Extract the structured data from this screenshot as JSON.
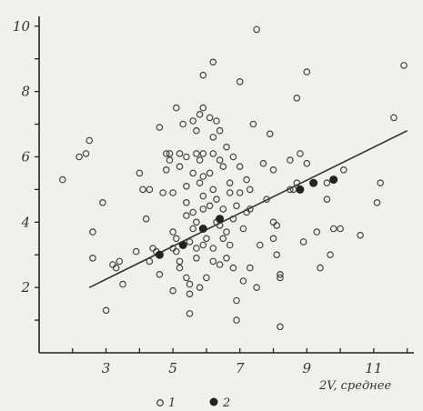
{
  "chart_data": {
    "type": "scatter",
    "title": "",
    "xlabel": "2V, среднее",
    "ylabel": "",
    "xlim": [
      1.0,
      12.2
    ],
    "ylim": [
      0,
      10.3
    ],
    "x_ticks": [
      "3",
      "5",
      "7",
      "9",
      "11"
    ],
    "y_ticks": [
      "2",
      "4",
      "6",
      "8",
      "10"
    ],
    "grid": false,
    "legend_position": "bottom-center",
    "colors": {
      "open_marker": "#444444",
      "filled_marker": "#222222",
      "line": "#333333",
      "axis": "#222222"
    },
    "series": [
      {
        "name": "1",
        "marker": "open-circle",
        "points": [
          [
            1.7,
            5.3
          ],
          [
            2.2,
            6.0
          ],
          [
            2.4,
            6.1
          ],
          [
            2.5,
            6.5
          ],
          [
            2.6,
            3.7
          ],
          [
            2.6,
            2.9
          ],
          [
            2.9,
            4.6
          ],
          [
            3.0,
            1.3
          ],
          [
            3.2,
            2.7
          ],
          [
            3.3,
            2.6
          ],
          [
            3.4,
            2.8
          ],
          [
            3.5,
            2.1
          ],
          [
            3.9,
            3.1
          ],
          [
            4.0,
            5.5
          ],
          [
            4.1,
            5.0
          ],
          [
            4.2,
            4.1
          ],
          [
            4.3,
            5.0
          ],
          [
            4.3,
            2.8
          ],
          [
            4.4,
            3.2
          ],
          [
            4.5,
            3.1
          ],
          [
            4.6,
            6.9
          ],
          [
            4.6,
            2.4
          ],
          [
            4.7,
            4.9
          ],
          [
            4.8,
            6.1
          ],
          [
            4.8,
            5.6
          ],
          [
            4.9,
            5.9
          ],
          [
            4.9,
            6.1
          ],
          [
            5.0,
            4.9
          ],
          [
            5.0,
            3.7
          ],
          [
            5.0,
            3.2
          ],
          [
            5.0,
            1.9
          ],
          [
            5.1,
            3.5
          ],
          [
            5.1,
            3.1
          ],
          [
            5.2,
            2.6
          ],
          [
            5.1,
            7.5
          ],
          [
            5.2,
            6.1
          ],
          [
            5.2,
            5.7
          ],
          [
            5.2,
            2.8
          ],
          [
            5.3,
            7.0
          ],
          [
            5.4,
            6.0
          ],
          [
            5.4,
            5.1
          ],
          [
            5.4,
            4.6
          ],
          [
            5.4,
            4.2
          ],
          [
            5.4,
            2.3
          ],
          [
            5.5,
            1.2
          ],
          [
            5.5,
            3.4
          ],
          [
            5.5,
            2.1
          ],
          [
            5.5,
            1.8
          ],
          [
            5.6,
            7.1
          ],
          [
            5.6,
            5.5
          ],
          [
            5.6,
            4.3
          ],
          [
            5.6,
            3.8
          ],
          [
            5.7,
            6.8
          ],
          [
            5.7,
            6.1
          ],
          [
            5.7,
            4.0
          ],
          [
            5.7,
            3.2
          ],
          [
            5.7,
            2.9
          ],
          [
            5.8,
            7.3
          ],
          [
            5.8,
            5.9
          ],
          [
            5.8,
            5.2
          ],
          [
            5.8,
            2.0
          ],
          [
            5.9,
            8.5
          ],
          [
            5.9,
            7.5
          ],
          [
            5.9,
            6.1
          ],
          [
            5.9,
            5.4
          ],
          [
            5.9,
            4.8
          ],
          [
            5.9,
            4.4
          ],
          [
            5.9,
            3.3
          ],
          [
            6.0,
            3.5
          ],
          [
            6.0,
            2.3
          ],
          [
            6.1,
            7.2
          ],
          [
            6.1,
            5.5
          ],
          [
            6.1,
            4.5
          ],
          [
            6.2,
            8.9
          ],
          [
            6.2,
            6.6
          ],
          [
            6.2,
            6.1
          ],
          [
            6.2,
            5.0
          ],
          [
            6.2,
            3.2
          ],
          [
            6.2,
            2.8
          ],
          [
            6.3,
            7.1
          ],
          [
            6.3,
            4.7
          ],
          [
            6.3,
            4.0
          ],
          [
            6.4,
            6.8
          ],
          [
            6.4,
            5.9
          ],
          [
            6.4,
            3.9
          ],
          [
            6.4,
            2.7
          ],
          [
            6.5,
            5.7
          ],
          [
            6.5,
            4.4
          ],
          [
            6.5,
            3.5
          ],
          [
            6.6,
            6.3
          ],
          [
            6.6,
            3.7
          ],
          [
            6.6,
            2.9
          ],
          [
            6.7,
            5.2
          ],
          [
            6.7,
            4.9
          ],
          [
            6.7,
            3.3
          ],
          [
            6.8,
            6.0
          ],
          [
            6.8,
            4.1
          ],
          [
            6.8,
            2.6
          ],
          [
            6.9,
            1.0
          ],
          [
            6.9,
            1.6
          ],
          [
            6.9,
            4.5
          ],
          [
            7.0,
            8.3
          ],
          [
            7.0,
            5.7
          ],
          [
            7.0,
            4.9
          ],
          [
            7.1,
            3.8
          ],
          [
            7.1,
            2.2
          ],
          [
            7.2,
            4.3
          ],
          [
            7.2,
            5.3
          ],
          [
            7.3,
            2.6
          ],
          [
            7.3,
            5.0
          ],
          [
            7.3,
            4.4
          ],
          [
            7.4,
            7.0
          ],
          [
            7.5,
            9.9
          ],
          [
            7.5,
            2.0
          ],
          [
            7.6,
            3.3
          ],
          [
            7.7,
            5.8
          ],
          [
            7.8,
            4.7
          ],
          [
            7.9,
            6.7
          ],
          [
            8.0,
            4.0
          ],
          [
            8.0,
            5.6
          ],
          [
            8.0,
            3.5
          ],
          [
            8.1,
            3.0
          ],
          [
            8.1,
            3.9
          ],
          [
            8.2,
            2.4
          ],
          [
            8.2,
            2.3
          ],
          [
            8.2,
            0.8
          ],
          [
            8.5,
            5.9
          ],
          [
            8.5,
            5.0
          ],
          [
            8.6,
            5.0
          ],
          [
            8.7,
            7.8
          ],
          [
            8.7,
            5.2
          ],
          [
            8.8,
            6.1
          ],
          [
            8.9,
            3.4
          ],
          [
            9.0,
            5.8
          ],
          [
            9.0,
            8.6
          ],
          [
            9.3,
            3.7
          ],
          [
            9.4,
            2.6
          ],
          [
            9.6,
            4.7
          ],
          [
            9.6,
            5.2
          ],
          [
            9.7,
            3.0
          ],
          [
            9.8,
            3.8
          ],
          [
            10.0,
            3.8
          ],
          [
            10.1,
            5.6
          ],
          [
            10.6,
            3.6
          ],
          [
            11.1,
            4.6
          ],
          [
            11.2,
            5.2
          ],
          [
            11.6,
            7.2
          ],
          [
            11.9,
            8.8
          ]
        ]
      },
      {
        "name": "2",
        "marker": "filled-circle",
        "points": [
          [
            4.6,
            3.0
          ],
          [
            5.3,
            3.3
          ],
          [
            5.9,
            3.8
          ],
          [
            6.4,
            4.1
          ],
          [
            8.8,
            5.0
          ],
          [
            9.2,
            5.2
          ],
          [
            9.8,
            5.3
          ]
        ]
      }
    ],
    "trend_line": {
      "x": [
        2.5,
        12.0
      ],
      "y": [
        2.0,
        6.8
      ]
    }
  }
}
